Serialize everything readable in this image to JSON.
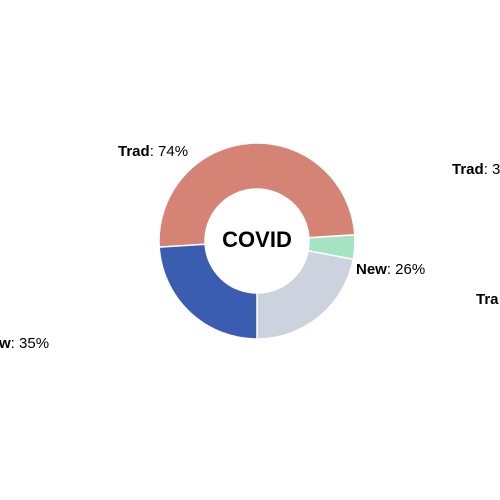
{
  "chart_data": {
    "type": "donut",
    "center_label": "COVID",
    "groups": [
      {
        "name": "Trad",
        "value": 74,
        "value_label": ": 74%"
      },
      {
        "name": "New",
        "value": 26,
        "value_label": ": 26%"
      }
    ],
    "segments": {
      "values": [
        50,
        4,
        22,
        24
      ],
      "colors": [
        "#d48375",
        "#a6e3c3",
        "#cdd3de",
        "#3a5db2"
      ]
    }
  },
  "offscreen_labels": [
    {
      "name": "w",
      "value_label": ": 35%"
    },
    {
      "name": "Trad",
      "value_label": ": 3"
    },
    {
      "name": "Tra"
    }
  ]
}
